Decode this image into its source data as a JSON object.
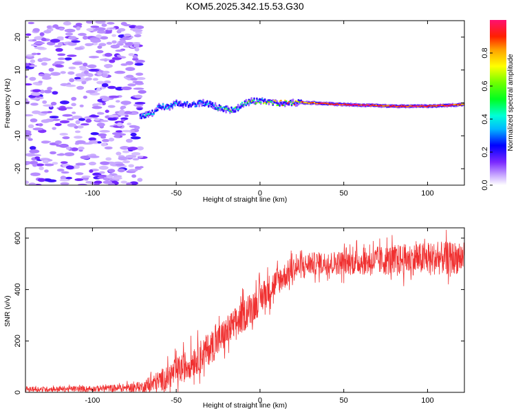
{
  "title": "KOM5.2025.342.15.53.G30",
  "chart_data": [
    {
      "type": "heatmap",
      "name": "spectrogram",
      "xlabel": "Height of straight line (km)",
      "ylabel": "Frequency (Hz)",
      "xlim": [
        -140,
        122
      ],
      "ylim": [
        -25,
        25
      ],
      "x_ticks": [
        -100,
        -50,
        0,
        50,
        100
      ],
      "y_ticks": [
        20,
        10,
        0,
        -10,
        -20
      ],
      "colorbar": {
        "label": "Normalized spectral amplitude",
        "range": [
          0,
          1
        ],
        "ticks": [
          0.0,
          0.2,
          0.4,
          0.6,
          0.8
        ]
      },
      "noise_region_end_x": -70,
      "signal_trace": {
        "x": [
          -72,
          -66,
          -60,
          -55,
          -50,
          -45,
          -40,
          -35,
          -30,
          -25,
          -20,
          -15,
          -10,
          -5,
          0,
          5,
          10,
          20,
          30,
          50,
          80,
          100,
          122
        ],
        "frequency": [
          -4,
          -3.5,
          -1,
          -1.5,
          0,
          -0.5,
          -0.5,
          0,
          -0.5,
          -1.5,
          -2,
          -2,
          0,
          0.5,
          0.5,
          0,
          0,
          0,
          0,
          -0.5,
          -1,
          -1,
          -0.5
        ],
        "amplitude": [
          0.35,
          0.4,
          0.3,
          0.35,
          0.3,
          0.25,
          0.25,
          0.3,
          0.35,
          0.45,
          0.55,
          0.5,
          0.5,
          0.55,
          0.6,
          0.65,
          0.7,
          0.75,
          0.85,
          0.97,
          0.95,
          0.95,
          0.9
        ]
      }
    },
    {
      "type": "line",
      "name": "snr",
      "xlabel": "Height of straight line (km)",
      "ylabel": "SNR (v/v)",
      "xlim": [
        -140,
        122
      ],
      "ylim": [
        0,
        640
      ],
      "x_ticks": [
        -100,
        -50,
        0,
        50,
        100
      ],
      "y_ticks": [
        0,
        200,
        400,
        600
      ],
      "color": "#f03030",
      "trend": {
        "x": [
          -140,
          -100,
          -80,
          -70,
          -65,
          -55,
          -45,
          -35,
          -25,
          -15,
          -5,
          0,
          10,
          20,
          30,
          50,
          80,
          100,
          122
        ],
        "mean": [
          12,
          14,
          18,
          22,
          30,
          60,
          100,
          145,
          200,
          265,
          330,
          365,
          430,
          480,
          500,
          505,
          515,
          520,
          525
        ],
        "noise": [
          12,
          14,
          20,
          25,
          45,
          60,
          75,
          80,
          80,
          80,
          80,
          80,
          70,
          60,
          55,
          60,
          75,
          80,
          80
        ]
      }
    }
  ]
}
